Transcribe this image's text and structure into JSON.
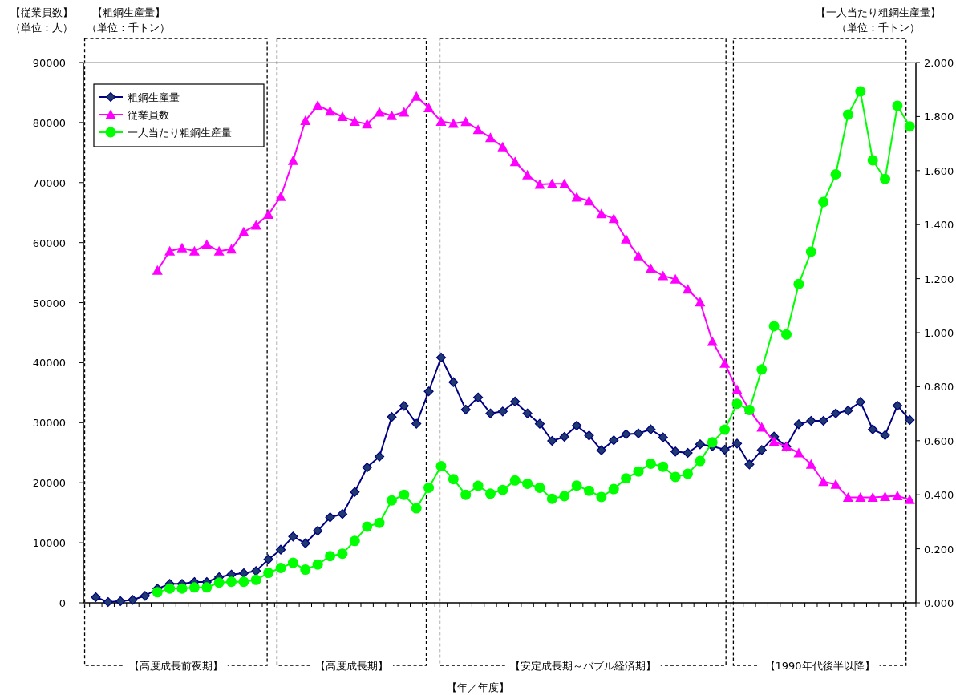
{
  "chart_data": {
    "type": "line",
    "ylabel": "【従業員数】",
    "y2label": "【一人当たり粗鋼生産量】",
    "annotations": [
      "（単位：人）",
      "【粗鋼生産量】",
      "（単位：千トン）",
      "（単位：千トン）",
      "【年／年度】",
      "【高度成長前夜期】",
      "【高度成長期】",
      "【安定成長期～バブル経済期】",
      "【1990年代後半以降】"
    ],
    "categories": [
      null,
      null,
      null,
      null,
      null,
      null,
      null,
      null,
      null,
      null,
      null,
      null,
      null,
      null,
      null,
      null,
      null,
      null,
      null,
      null,
      null,
      null,
      null,
      null,
      null,
      null,
      null,
      null,
      null,
      null,
      null,
      null,
      null,
      null,
      null,
      null,
      null,
      null,
      null,
      null,
      null,
      null,
      null,
      null,
      null,
      null,
      null,
      null,
      null,
      null,
      null,
      null,
      null,
      null,
      null,
      null,
      null,
      null,
      null,
      null,
      null,
      null,
      null,
      null,
      null,
      null,
      null
    ],
    "series": [
      {
        "name": "粗鋼生産量",
        "color": "#000080",
        "marker": "diamond",
        "values": [
          935,
          134,
          267,
          494,
          1160,
          2360,
          3160,
          3160,
          3470,
          3470,
          4270,
          4710,
          4940,
          5300,
          7250,
          8850,
          11040,
          9920,
          12000,
          14250,
          14800,
          18460,
          22560,
          24360,
          30950,
          32800,
          29830,
          35220,
          40860,
          36760,
          32180,
          34220,
          31550,
          31870,
          33520,
          31550,
          29820,
          26970,
          27640,
          29510,
          27870,
          25410,
          27070,
          28080,
          28220,
          28880,
          27550,
          25200,
          24970,
          26400,
          26080,
          25500,
          26530,
          23060,
          25450,
          27690,
          26030,
          29740,
          30310,
          30310,
          31550,
          32030,
          33460,
          28880,
          27920,
          32840,
          30460
        ]
      },
      {
        "name": "従業員数",
        "color": "#ff00ff",
        "marker": "triangle",
        "values": [
          null,
          null,
          null,
          null,
          null,
          55380,
          58580,
          59110,
          58580,
          59690,
          58580,
          58930,
          61780,
          62900,
          64680,
          67660,
          73680,
          80320,
          82840,
          81890,
          80990,
          80200,
          79760,
          81720,
          81160,
          81720,
          84360,
          82460,
          80200,
          79850,
          80160,
          78820,
          77490,
          75940,
          73480,
          71270,
          69700,
          69800,
          69800,
          67570,
          66940,
          64800,
          64000,
          60580,
          57780,
          55680,
          54480,
          53900,
          52250,
          50110,
          43530,
          39890,
          35520,
          32130,
          29260,
          26880,
          26030,
          24970,
          23060,
          20200,
          19720,
          17570,
          17570,
          17570,
          17680,
          17810,
          17200
        ]
      },
      {
        "name": "一人当たり粗鋼生産量",
        "color": "#00ff00",
        "marker": "circle",
        "axis": "y2",
        "values": [
          null,
          null,
          null,
          null,
          null,
          0.039,
          0.053,
          0.053,
          0.057,
          0.057,
          0.075,
          0.078,
          0.078,
          0.085,
          0.111,
          0.129,
          0.148,
          0.123,
          0.142,
          0.173,
          0.182,
          0.229,
          0.282,
          0.296,
          0.379,
          0.4,
          0.35,
          0.426,
          0.506,
          0.458,
          0.4,
          0.433,
          0.404,
          0.418,
          0.453,
          0.441,
          0.426,
          0.385,
          0.395,
          0.434,
          0.415,
          0.392,
          0.421,
          0.461,
          0.486,
          0.515,
          0.504,
          0.466,
          0.478,
          0.525,
          0.594,
          0.641,
          0.737,
          0.714,
          0.864,
          1.024,
          0.993,
          1.18,
          1.3,
          1.484,
          1.586,
          1.807,
          1.893,
          1.638,
          1.569,
          1.84,
          1.763
        ]
      }
    ],
    "ylim": [
      0,
      90000
    ],
    "yticks": [
      0,
      10000,
      20000,
      30000,
      40000,
      50000,
      60000,
      70000,
      80000,
      90000
    ],
    "y2lim": [
      0,
      2
    ],
    "y2ticks": [
      {
        "value": 0,
        "label": "0.000"
      },
      {
        "value": 0.2,
        "label": "0.200"
      },
      {
        "value": 0.4,
        "label": "0.400"
      },
      {
        "value": 0.6,
        "label": "0.600"
      },
      {
        "value": 0.8,
        "label": "0.800"
      },
      {
        "value": 1,
        "label": "1.000"
      },
      {
        "value": 1.2,
        "label": "1.200"
      },
      {
        "value": 1.4,
        "label": "1.400"
      },
      {
        "value": 1.6,
        "label": "1.600"
      },
      {
        "value": 1.8,
        "label": "1.800"
      },
      {
        "value": 2,
        "label": "2.000"
      }
    ],
    "legend": "top left",
    "grid": false
  }
}
